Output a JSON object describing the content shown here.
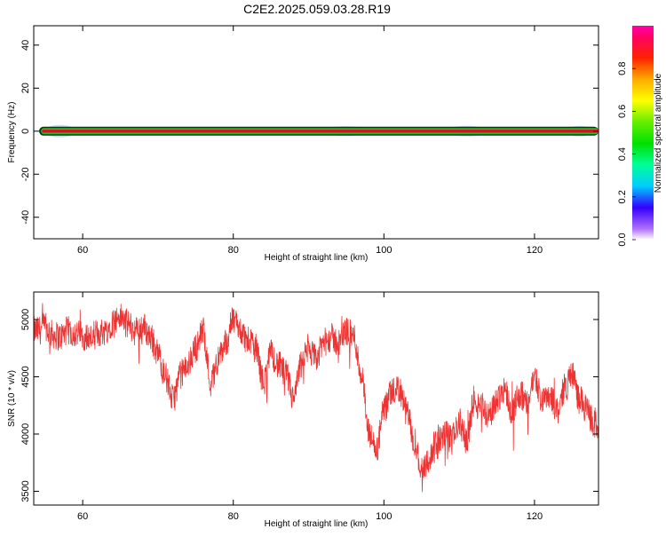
{
  "title": "C2E2.2025.059.03.28.R19",
  "colors": {
    "signal_line": "#ee3333",
    "center_red": "#ee2222",
    "center_green": "#22bb33",
    "center_dark": "#113311",
    "halo_blue": "#a8c8f0"
  },
  "chart_data": [
    {
      "type": "heatmap",
      "name": "spectrogram",
      "xlabel": "Height of straight line (km)",
      "ylabel": "Frequency (Hz)",
      "xlim": [
        53.5,
        128.5
      ],
      "ylim": [
        -50,
        49
      ],
      "xticks": [
        60,
        80,
        100,
        120
      ],
      "xtick_labels": [
        "60",
        "80",
        "100",
        "120"
      ],
      "yticks": [
        40,
        20,
        0,
        -20,
        -40
      ],
      "ytick_labels": [
        "40",
        "20",
        "0",
        "-20",
        "-40"
      ],
      "grid": false,
      "peak_frequency": 0,
      "colorbar": {
        "label": "Normalized spectral amplitude",
        "range": [
          0,
          1
        ],
        "ticks": [
          0.0,
          0.2,
          0.4,
          0.6,
          0.8
        ],
        "tick_labels": [
          "0.0",
          "0.2",
          "0.4",
          "0.6",
          "0.8"
        ],
        "colormap": "rainbow"
      }
    },
    {
      "type": "line",
      "name": "snr",
      "xlabel": "Height of straight line (km)",
      "ylabel": "SNR (10 * v/v)",
      "xlim": [
        53.5,
        128.5
      ],
      "ylim": [
        3380,
        5240
      ],
      "xticks": [
        60,
        80,
        100,
        120
      ],
      "xtick_labels": [
        "60",
        "80",
        "100",
        "120"
      ],
      "yticks": [
        3500,
        4000,
        4500,
        5000
      ],
      "ytick_labels": [
        "3500",
        "4000",
        "4500",
        "5000"
      ],
      "grid": false,
      "series": [
        {
          "x": [
            54,
            55,
            56,
            57,
            58,
            59,
            60,
            61,
            62,
            63,
            64,
            65,
            66,
            67,
            68,
            69,
            70,
            71,
            72,
            73,
            74,
            75,
            76,
            77,
            78,
            79,
            80,
            81,
            82,
            83,
            84,
            85,
            86,
            87,
            88,
            89,
            90,
            91,
            92,
            93,
            94,
            95,
            96,
            97,
            98,
            99,
            100,
            101,
            102,
            103,
            104,
            105,
            106,
            107,
            108,
            109,
            110,
            111,
            112,
            113,
            114,
            115,
            116,
            117,
            118,
            119,
            120,
            121,
            122,
            123,
            124,
            125,
            126,
            127,
            128
          ],
          "values": [
            4900,
            4930,
            4870,
            4850,
            4900,
            4880,
            4860,
            4840,
            4880,
            4900,
            4980,
            5020,
            4960,
            4900,
            4940,
            4850,
            4700,
            4500,
            4300,
            4520,
            4600,
            4750,
            4900,
            4450,
            4650,
            4800,
            5000,
            4900,
            4800,
            4750,
            4450,
            4700,
            4600,
            4520,
            4300,
            4600,
            4750,
            4650,
            4800,
            4840,
            4800,
            4900,
            4850,
            4520,
            4000,
            3850,
            4200,
            4350,
            4400,
            4200,
            3950,
            3700,
            3780,
            3900,
            4000,
            3950,
            4100,
            3950,
            4300,
            4250,
            4150,
            4300,
            4400,
            4200,
            4350,
            4250,
            4500,
            4300,
            4350,
            4200,
            4400,
            4520,
            4300,
            4200,
            4080
          ]
        }
      ]
    }
  ]
}
